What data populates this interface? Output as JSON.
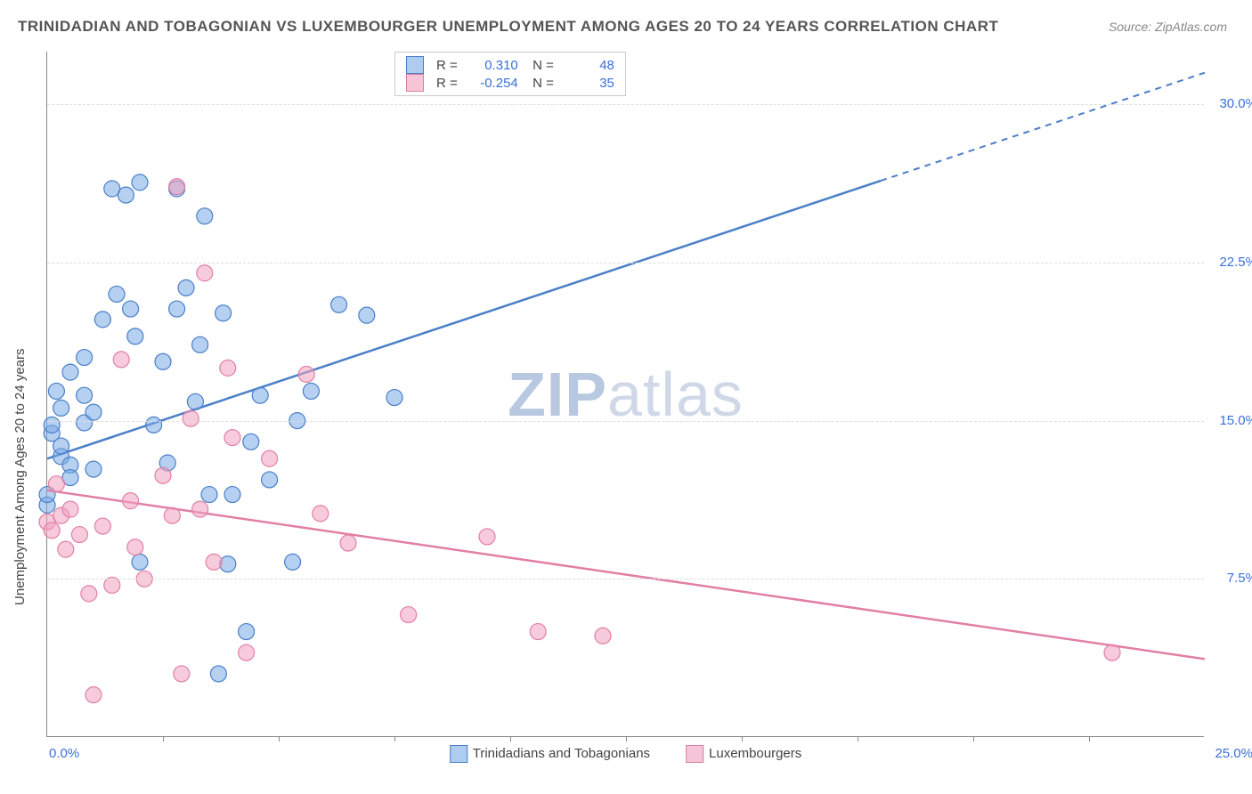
{
  "title": "TRINIDADIAN AND TOBAGONIAN VS LUXEMBOURGER UNEMPLOYMENT AMONG AGES 20 TO 24 YEARS CORRELATION CHART",
  "source": "Source: ZipAtlas.com",
  "ylabel": "Unemployment Among Ages 20 to 24 years",
  "watermark_a": "ZIP",
  "watermark_b": "atlas",
  "chart": {
    "type": "scatter",
    "xlim": [
      0,
      25
    ],
    "ylim": [
      0,
      32.5
    ],
    "ytick_labels": [
      "7.5%",
      "15.0%",
      "22.5%",
      "30.0%"
    ],
    "ytick_values": [
      7.5,
      15.0,
      22.5,
      30.0
    ],
    "xtick_left": "0.0%",
    "xtick_right": "25.0%",
    "xtick_marks": [
      2.5,
      5,
      7.5,
      10,
      12.5,
      15,
      17.5,
      20,
      22.5
    ],
    "grid_color": "#dddddd",
    "background_color": "#ffffff",
    "axis_color": "#888888",
    "tick_color": "#3a6fd8",
    "point_radius": 9,
    "series": [
      {
        "name": "Trinidadians and Tobagonians",
        "color_fill": "rgba(120,170,230,0.55)",
        "color_stroke": "#4a7fc8",
        "R": "0.310",
        "N": "48",
        "trend": {
          "x1": 0,
          "y1": 13.2,
          "x2": 25,
          "y2": 31.5,
          "solid_until_x": 18
        },
        "points": [
          [
            0.0,
            11.0
          ],
          [
            0.0,
            11.5
          ],
          [
            0.1,
            14.4
          ],
          [
            0.1,
            14.8
          ],
          [
            0.2,
            16.4
          ],
          [
            0.3,
            13.3
          ],
          [
            0.3,
            13.8
          ],
          [
            0.3,
            15.6
          ],
          [
            0.5,
            12.9
          ],
          [
            0.5,
            12.3
          ],
          [
            0.5,
            17.3
          ],
          [
            0.8,
            14.9
          ],
          [
            0.8,
            16.2
          ],
          [
            0.8,
            18.0
          ],
          [
            1.0,
            12.7
          ],
          [
            1.0,
            15.4
          ],
          [
            1.2,
            19.8
          ],
          [
            1.4,
            26.0
          ],
          [
            1.5,
            21.0
          ],
          [
            1.7,
            25.7
          ],
          [
            1.8,
            20.3
          ],
          [
            1.9,
            19.0
          ],
          [
            2.0,
            26.3
          ],
          [
            2.0,
            8.3
          ],
          [
            2.3,
            14.8
          ],
          [
            2.5,
            17.8
          ],
          [
            2.6,
            13.0
          ],
          [
            2.8,
            26.0
          ],
          [
            2.8,
            20.3
          ],
          [
            3.0,
            21.3
          ],
          [
            3.2,
            15.9
          ],
          [
            3.3,
            18.6
          ],
          [
            3.4,
            24.7
          ],
          [
            3.5,
            11.5
          ],
          [
            3.7,
            3.0
          ],
          [
            3.8,
            20.1
          ],
          [
            3.9,
            8.2
          ],
          [
            4.0,
            11.5
          ],
          [
            4.4,
            14.0
          ],
          [
            4.6,
            16.2
          ],
          [
            4.8,
            12.2
          ],
          [
            5.3,
            8.3
          ],
          [
            5.4,
            15.0
          ],
          [
            5.7,
            16.4
          ],
          [
            6.3,
            20.5
          ],
          [
            6.9,
            20.0
          ],
          [
            7.5,
            16.1
          ],
          [
            4.3,
            5.0
          ]
        ]
      },
      {
        "name": "Luxembourgers",
        "color_fill": "rgba(240,160,190,0.55)",
        "color_stroke": "#e27fa5",
        "R": "-0.254",
        "N": "35",
        "trend": {
          "x1": 0,
          "y1": 11.7,
          "x2": 25,
          "y2": 3.7,
          "solid_until_x": 25
        },
        "points": [
          [
            0.0,
            10.2
          ],
          [
            0.1,
            9.8
          ],
          [
            0.2,
            12.0
          ],
          [
            0.3,
            10.5
          ],
          [
            0.4,
            8.9
          ],
          [
            0.5,
            10.8
          ],
          [
            0.7,
            9.6
          ],
          [
            0.9,
            6.8
          ],
          [
            1.0,
            2.0
          ],
          [
            1.2,
            10.0
          ],
          [
            1.4,
            7.2
          ],
          [
            1.6,
            17.9
          ],
          [
            1.8,
            11.2
          ],
          [
            1.9,
            9.0
          ],
          [
            2.1,
            7.5
          ],
          [
            2.5,
            12.4
          ],
          [
            2.7,
            10.5
          ],
          [
            2.8,
            26.1
          ],
          [
            2.9,
            3.0
          ],
          [
            3.1,
            15.1
          ],
          [
            3.3,
            10.8
          ],
          [
            3.4,
            22.0
          ],
          [
            3.6,
            8.3
          ],
          [
            3.9,
            17.5
          ],
          [
            4.0,
            14.2
          ],
          [
            4.3,
            4.0
          ],
          [
            4.8,
            13.2
          ],
          [
            5.6,
            17.2
          ],
          [
            5.9,
            10.6
          ],
          [
            6.5,
            9.2
          ],
          [
            7.8,
            5.8
          ],
          [
            9.5,
            9.5
          ],
          [
            10.6,
            5.0
          ],
          [
            12.0,
            4.8
          ],
          [
            23.0,
            4.0
          ]
        ]
      }
    ]
  },
  "legend_box": {
    "rows": [
      {
        "swatch": "blue",
        "R_label": "R =",
        "R": "0.310",
        "N_label": "N =",
        "N": "48"
      },
      {
        "swatch": "pink",
        "R_label": "R =",
        "R": "-0.254",
        "N_label": "N =",
        "N": "35"
      }
    ]
  },
  "legend_bottom": {
    "items": [
      {
        "swatch": "blue",
        "label": "Trinidadians and Tobagonians"
      },
      {
        "swatch": "pink",
        "label": "Luxembourgers"
      }
    ]
  }
}
